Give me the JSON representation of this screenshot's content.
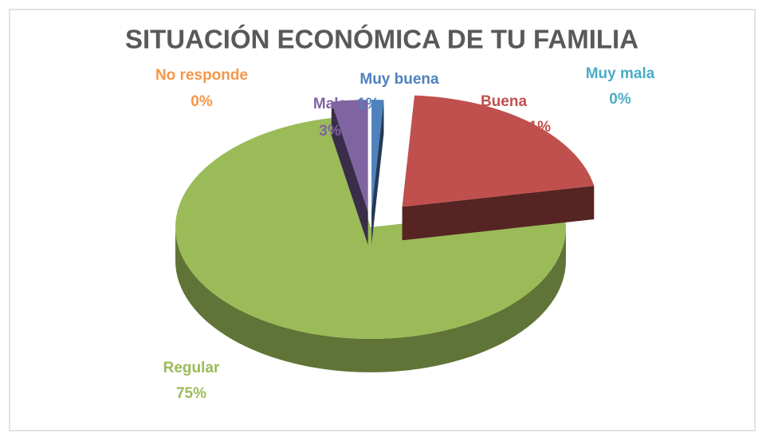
{
  "chart_data": {
    "type": "pie",
    "title": "SITUACIÓN ECONÓMICA DE TU FAMILIA",
    "categories": [
      "Muy buena",
      "Muy mala",
      "Buena",
      "Regular",
      "Mala",
      "No responde"
    ],
    "values": [
      1,
      0,
      21,
      75,
      3,
      0
    ],
    "value_labels": [
      "1%",
      "0%",
      "21%",
      "75%",
      "3%",
      "0%"
    ],
    "colors": [
      "#4f81bd",
      "#4bacc6",
      "#c0504d",
      "#9bbb59",
      "#8064a2",
      "#f79646"
    ]
  }
}
